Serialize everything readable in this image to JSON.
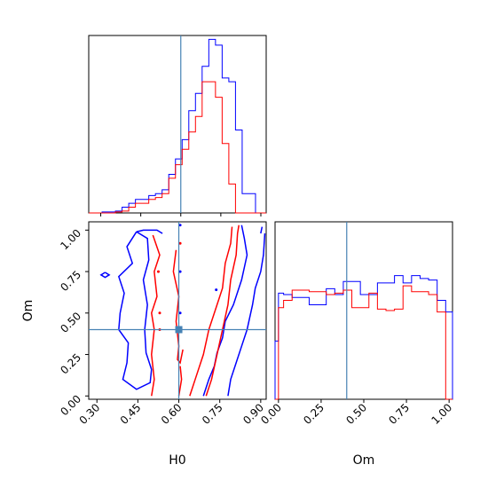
{
  "chart_data": {
    "type": "corner",
    "parameters": [
      "H0",
      "Om"
    ],
    "truths": {
      "H0": 0.6,
      "Om": 0.4
    },
    "series_colors": [
      "#0000ff",
      "#ff0000"
    ],
    "truth_color": "#4682b4",
    "panels": [
      {
        "id": "hist-H0",
        "type": "step-histogram",
        "xlim": [
          0.255,
          0.92
        ],
        "bin_edges": [
          0.255,
          0.28,
          0.305,
          0.33,
          0.355,
          0.38,
          0.405,
          0.43,
          0.455,
          0.48,
          0.505,
          0.53,
          0.555,
          0.58,
          0.605,
          0.63,
          0.655,
          0.68,
          0.705,
          0.73,
          0.755,
          0.78,
          0.805,
          0.83,
          0.855,
          0.88,
          0.905,
          0.92
        ],
        "series": [
          {
            "color": "#0000ff",
            "values": [
              0,
              0,
              0.5,
              0.5,
              1,
              3,
              5,
              7,
              7,
              9,
              10,
              12,
              20,
              28,
              38,
              53,
              62,
              76,
              90,
              87,
              70,
              68,
              43,
              10,
              10,
              0,
              0
            ]
          },
          {
            "color": "#ff0000",
            "values": [
              0,
              0,
              0,
              0,
              0.5,
              1,
              3,
              5,
              5,
              7,
              8,
              10,
              18,
              25,
              33,
              42,
              50,
              68,
              68,
              60,
              36,
              15,
              0,
              0,
              0,
              0,
              0
            ]
          }
        ]
      },
      {
        "id": "hist-Om",
        "type": "step-histogram",
        "xlim": [
          -0.02,
          1.02
        ],
        "bin_edges": [
          -0.02,
          0.0,
          0.03,
          0.08,
          0.13,
          0.18,
          0.23,
          0.28,
          0.33,
          0.38,
          0.43,
          0.48,
          0.53,
          0.58,
          0.63,
          0.68,
          0.73,
          0.78,
          0.83,
          0.88,
          0.93,
          0.98,
          1.0,
          1.02
        ],
        "series": [
          {
            "color": "#0000ff",
            "values": [
              40,
              73,
              72,
              70,
              70,
              65,
              65,
              76,
              72,
              81,
              81,
              72,
              72,
              80,
              80,
              85,
              80,
              85,
              83,
              82,
              68,
              60,
              60
            ]
          },
          {
            "color": "#ff0000",
            "values": [
              0,
              63,
              68,
              75,
              75,
              74,
              74,
              72,
              73,
              75,
              63,
              63,
              73,
              62,
              61,
              62,
              78,
              74,
              74,
              72,
              60,
              0,
              0
            ]
          }
        ]
      },
      {
        "id": "2d-H0-Om",
        "type": "contour",
        "xlim": [
          0.27,
          0.92
        ],
        "ylim": [
          -0.02,
          1.05
        ],
        "series": [
          {
            "color": "#0000ff",
            "contours": [
              [
                [
                  0.445,
                  0.99
                ],
                [
                  0.41,
                  0.9
                ],
                [
                  0.43,
                  0.8
                ],
                [
                  0.38,
                  0.72
                ],
                [
                  0.4,
                  0.62
                ],
                [
                  0.385,
                  0.5
                ],
                [
                  0.38,
                  0.4
                ],
                [
                  0.415,
                  0.32
                ],
                [
                  0.41,
                  0.2
                ],
                [
                  0.395,
                  0.1
                ],
                [
                  0.445,
                  0.04
                ],
                [
                  0.495,
                  0.08
                ],
                [
                  0.5,
                  0.16
                ],
                [
                  0.48,
                  0.26
                ],
                [
                  0.475,
                  0.4
                ],
                [
                  0.485,
                  0.55
                ],
                [
                  0.47,
                  0.7
                ],
                [
                  0.49,
                  0.82
                ],
                [
                  0.485,
                  0.95
                ],
                [
                  0.445,
                  0.99
                ]
              ],
              [
                [
                  0.445,
                  0.99
                ],
                [
                  0.47,
                  1.0
                ],
                [
                  0.52,
                  1.0
                ],
                [
                  0.54,
                  0.98
                ]
              ],
              [
                [
                  0.69,
                  0.0
                ],
                [
                  0.71,
                  0.1
                ],
                [
                  0.73,
                  0.18
                ],
                [
                  0.74,
                  0.26
                ],
                [
                  0.76,
                  0.35
                ],
                [
                  0.77,
                  0.45
                ],
                [
                  0.8,
                  0.55
                ],
                [
                  0.83,
                  0.7
                ],
                [
                  0.85,
                  0.85
                ],
                [
                  0.84,
                  0.95
                ],
                [
                  0.83,
                  1.03
                ]
              ],
              [
                [
                  0.78,
                  0.0
                ],
                [
                  0.79,
                  0.1
                ],
                [
                  0.81,
                  0.2
                ],
                [
                  0.83,
                  0.3
                ],
                [
                  0.85,
                  0.4
                ],
                [
                  0.87,
                  0.55
                ],
                [
                  0.88,
                  0.65
                ],
                [
                  0.9,
                  0.75
                ],
                [
                  0.91,
                  0.85
                ],
                [
                  0.915,
                  0.98
                ]
              ],
              [
                [
                  0.9,
                  0.98
                ],
                [
                  0.905,
                  1.02
                ]
              ],
              [
                [
                  0.33,
                  0.745
                ],
                [
                  0.345,
                  0.73
                ],
                [
                  0.33,
                  0.715
                ],
                [
                  0.315,
                  0.73
                ],
                [
                  0.33,
                  0.745
                ]
              ]
            ],
            "dots": [
              [
                0.605,
                1.03
              ],
              [
                0.605,
                0.75
              ],
              [
                0.605,
                0.5
              ],
              [
                0.737,
                0.64
              ]
            ]
          },
          {
            "color": "#ff0000",
            "contours": [
              [
                [
                  0.505,
                  0.97
                ],
                [
                  0.53,
                  0.85
                ],
                [
                  0.51,
                  0.75
                ],
                [
                  0.52,
                  0.6
                ],
                [
                  0.5,
                  0.5
                ],
                [
                  0.51,
                  0.4
                ],
                [
                  0.5,
                  0.25
                ],
                [
                  0.51,
                  0.1
                ],
                [
                  0.5,
                  0.0
                ]
              ],
              [
                [
                  0.6,
                  0.0
                ],
                [
                  0.61,
                  0.1
                ],
                [
                  0.605,
                  0.18
                ]
              ],
              [
                [
                  0.64,
                  0.0
                ],
                [
                  0.66,
                  0.1
                ],
                [
                  0.69,
                  0.25
                ],
                [
                  0.71,
                  0.4
                ],
                [
                  0.74,
                  0.55
                ],
                [
                  0.76,
                  0.65
                ],
                [
                  0.77,
                  0.8
                ],
                [
                  0.79,
                  0.92
                ],
                [
                  0.795,
                  1.02
                ]
              ],
              [
                [
                  0.7,
                  0.0
                ],
                [
                  0.72,
                  0.1
                ],
                [
                  0.74,
                  0.25
                ],
                [
                  0.76,
                  0.4
                ],
                [
                  0.78,
                  0.55
                ],
                [
                  0.79,
                  0.7
                ],
                [
                  0.81,
                  0.85
                ],
                [
                  0.815,
                  0.98
                ],
                [
                  0.82,
                  1.03
                ]
              ],
              [
                [
                  0.59,
                  0.88
                ],
                [
                  0.58,
                  0.75
                ],
                [
                  0.6,
                  0.6
                ],
                [
                  0.59,
                  0.45
                ],
                [
                  0.6,
                  0.3
                ],
                [
                  0.595,
                  0.22
                ],
                [
                  0.605,
                  0.2
                ],
                [
                  0.615,
                  0.28
                ]
              ]
            ],
            "dots": [
              [
                0.525,
                0.75
              ],
              [
                0.53,
                0.5
              ],
              [
                0.53,
                0.4
              ],
              [
                0.605,
                0.92
              ]
            ]
          }
        ]
      }
    ],
    "x_ticks_H0": [
      "0.30",
      "0.45",
      "0.60",
      "0.75",
      "0.90"
    ],
    "y_ticks_Om": [
      "0.00",
      "0.25",
      "0.50",
      "0.75",
      "1.00"
    ],
    "x_ticks_Om": [
      "0.00",
      "0.25",
      "0.50",
      "0.75",
      "1.00"
    ],
    "xlabel_left": "H0",
    "xlabel_right": "Om",
    "ylabel": "Om",
    "grid": false,
    "legend": "none"
  }
}
